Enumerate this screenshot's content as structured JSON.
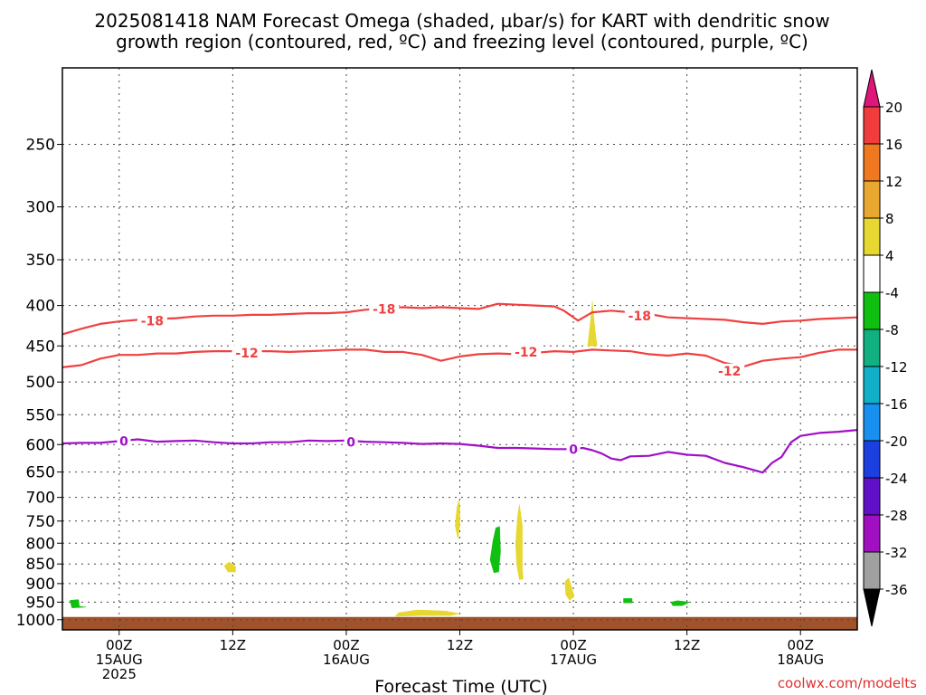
{
  "chart_data": {
    "type": "heatmap",
    "title_line1": "2025081418 NAM Forecast Omega (shaded, µbar/s) for KART with dendritic snow",
    "title_line2": "growth region (contoured, red, ºC) and freezing level (contoured, purple, ºC)",
    "xlabel": "Forecast Time (UTC)",
    "ylabel": "",
    "credit": "coolwx.com/modelts",
    "x_range_hours": [
      -6,
      78
    ],
    "x_ticks": [
      {
        "hour": 0,
        "line1": "00Z",
        "line2": "15AUG",
        "line3": "2025"
      },
      {
        "hour": 12,
        "line1": "12Z",
        "line2": "",
        "line3": ""
      },
      {
        "hour": 24,
        "line1": "00Z",
        "line2": "16AUG",
        "line3": ""
      },
      {
        "hour": 36,
        "line1": "12Z",
        "line2": "",
        "line3": ""
      },
      {
        "hour": 48,
        "line1": "00Z",
        "line2": "17AUG",
        "line3": ""
      },
      {
        "hour": 60,
        "line1": "12Z",
        "line2": "",
        "line3": ""
      },
      {
        "hour": 72,
        "line1": "00Z",
        "line2": "18AUG",
        "line3": ""
      }
    ],
    "y_range_hpa": [
      200,
      1030
    ],
    "y_ticks": [
      250,
      300,
      350,
      400,
      450,
      500,
      550,
      600,
      650,
      700,
      750,
      800,
      850,
      900,
      950,
      1000
    ],
    "grid": true,
    "colorbar": {
      "labels": [
        "20",
        "16",
        "12",
        "8",
        "4",
        "-4",
        "-8",
        "-12",
        "-16",
        "-20",
        "-24",
        "-28",
        "-32",
        "-36"
      ],
      "over_color": "#e0157a",
      "under_color": "#000000",
      "bins": [
        {
          "from": 16,
          "to": 20,
          "color": "#f03c3c"
        },
        {
          "from": 12,
          "to": 16,
          "color": "#f07820"
        },
        {
          "from": 8,
          "to": 12,
          "color": "#e8a830"
        },
        {
          "from": 4,
          "to": 8,
          "color": "#e6d830"
        },
        {
          "from": -4,
          "to": 4,
          "color": "#ffffff"
        },
        {
          "from": -8,
          "to": -4,
          "color": "#10c010"
        },
        {
          "from": -12,
          "to": -8,
          "color": "#10b080"
        },
        {
          "from": -16,
          "to": -12,
          "color": "#10b0c8"
        },
        {
          "from": -20,
          "to": -16,
          "color": "#1890f0"
        },
        {
          "from": -24,
          "to": -20,
          "color": "#1c40e0"
        },
        {
          "from": -28,
          "to": -24,
          "color": "#6010c8"
        },
        {
          "from": -32,
          "to": -28,
          "color": "#a010c0"
        },
        {
          "from": -36,
          "to": -32,
          "color": "#a0a0a0"
        }
      ]
    },
    "contours": [
      {
        "name": "-18",
        "color": "#f04040",
        "points": [
          [
            -6,
            435
          ],
          [
            -4,
            428
          ],
          [
            -2,
            422
          ],
          [
            0,
            419
          ],
          [
            2,
            417
          ],
          [
            4,
            416
          ],
          [
            6,
            415
          ],
          [
            8,
            413
          ],
          [
            10,
            412
          ],
          [
            12,
            412
          ],
          [
            14,
            411
          ],
          [
            16,
            411
          ],
          [
            18,
            410
          ],
          [
            20,
            409
          ],
          [
            22,
            409
          ],
          [
            24,
            408
          ],
          [
            26,
            405
          ],
          [
            28,
            403
          ],
          [
            30,
            402
          ],
          [
            32,
            403
          ],
          [
            34,
            402
          ],
          [
            36,
            403
          ],
          [
            38,
            404
          ],
          [
            40,
            398
          ],
          [
            42,
            399
          ],
          [
            44,
            400
          ],
          [
            46,
            401
          ],
          [
            47,
            406
          ],
          [
            48.5,
            418
          ],
          [
            50,
            408
          ],
          [
            52,
            406
          ],
          [
            54,
            408
          ],
          [
            56,
            410
          ],
          [
            58,
            414
          ],
          [
            60,
            415
          ],
          [
            62,
            416
          ],
          [
            64,
            417
          ],
          [
            66,
            420
          ],
          [
            68,
            422
          ],
          [
            70,
            419
          ],
          [
            72,
            418
          ],
          [
            74,
            416
          ],
          [
            76,
            415
          ],
          [
            78,
            414
          ]
        ],
        "labels": [
          [
            3.5,
            418
          ],
          [
            28,
            404
          ],
          [
            55,
            412
          ]
        ]
      },
      {
        "name": "-12",
        "color": "#f04040",
        "points": [
          [
            -6,
            479
          ],
          [
            -4,
            476
          ],
          [
            -2,
            467
          ],
          [
            0,
            462
          ],
          [
            2,
            462
          ],
          [
            4,
            460
          ],
          [
            6,
            460
          ],
          [
            8,
            458
          ],
          [
            10,
            457
          ],
          [
            12,
            457
          ],
          [
            14,
            457
          ],
          [
            16,
            457
          ],
          [
            18,
            458
          ],
          [
            20,
            457
          ],
          [
            22,
            456
          ],
          [
            24,
            455
          ],
          [
            26,
            455
          ],
          [
            28,
            458
          ],
          [
            30,
            458
          ],
          [
            32,
            462
          ],
          [
            34,
            470
          ],
          [
            36,
            464
          ],
          [
            38,
            461
          ],
          [
            40,
            460
          ],
          [
            42,
            461
          ],
          [
            44,
            459
          ],
          [
            46,
            457
          ],
          [
            48,
            458
          ],
          [
            50,
            455
          ],
          [
            52,
            456
          ],
          [
            54,
            457
          ],
          [
            56,
            461
          ],
          [
            58,
            463
          ],
          [
            60,
            460
          ],
          [
            62,
            463
          ],
          [
            64,
            473
          ],
          [
            66,
            478
          ],
          [
            68,
            470
          ],
          [
            70,
            467
          ],
          [
            72,
            465
          ],
          [
            74,
            459
          ],
          [
            76,
            455
          ],
          [
            78,
            455
          ]
        ],
        "labels": [
          [
            13.5,
            459
          ],
          [
            43,
            458
          ],
          [
            64.5,
            484
          ]
        ]
      },
      {
        "name": "0",
        "color": "#a010c8",
        "points": [
          [
            -6,
            598
          ],
          [
            -4,
            597
          ],
          [
            -2,
            597
          ],
          [
            0,
            594
          ],
          [
            2,
            591
          ],
          [
            4,
            595
          ],
          [
            6,
            594
          ],
          [
            8,
            593
          ],
          [
            10,
            596
          ],
          [
            12,
            598
          ],
          [
            14,
            598
          ],
          [
            16,
            596
          ],
          [
            18,
            596
          ],
          [
            20,
            593
          ],
          [
            22,
            594
          ],
          [
            24,
            593
          ],
          [
            26,
            595
          ],
          [
            28,
            596
          ],
          [
            30,
            597
          ],
          [
            32,
            599
          ],
          [
            34,
            598
          ],
          [
            36,
            599
          ],
          [
            38,
            602
          ],
          [
            40,
            606
          ],
          [
            42,
            606
          ],
          [
            44,
            607
          ],
          [
            46,
            608
          ],
          [
            48,
            608
          ],
          [
            49,
            606
          ],
          [
            50,
            610
          ],
          [
            51,
            616
          ],
          [
            52,
            625
          ],
          [
            53,
            628
          ],
          [
            54,
            621
          ],
          [
            56,
            620
          ],
          [
            58,
            613
          ],
          [
            60,
            618
          ],
          [
            62,
            620
          ],
          [
            64,
            633
          ],
          [
            66,
            641
          ],
          [
            68,
            651
          ],
          [
            69,
            633
          ],
          [
            70,
            622
          ],
          [
            71,
            596
          ],
          [
            72,
            585
          ],
          [
            74,
            580
          ],
          [
            76,
            578
          ],
          [
            78,
            575
          ]
        ],
        "labels": [
          [
            0.5,
            594
          ],
          [
            24.5,
            596
          ],
          [
            48,
            608
          ]
        ]
      }
    ],
    "shaded_regions": [
      {
        "value": 6,
        "color": "#e6d830",
        "points": [
          [
            49.5,
            450
          ],
          [
            49.8,
            420
          ],
          [
            50,
            395
          ],
          [
            50.2,
            420
          ],
          [
            50.5,
            450
          ]
        ]
      },
      {
        "value": 6,
        "color": "#e6d830",
        "points": [
          [
            11.1,
            855
          ],
          [
            11.6,
            845
          ],
          [
            12.3,
            856
          ],
          [
            12.3,
            870
          ],
          [
            11.5,
            870
          ]
        ]
      },
      {
        "value": 6,
        "color": "#e6d830",
        "points": [
          [
            35.5,
            760
          ],
          [
            35.7,
            720
          ],
          [
            35.9,
            705
          ],
          [
            36.0,
            720
          ],
          [
            36.0,
            760
          ],
          [
            35.8,
            790
          ]
        ]
      },
      {
        "value": 6,
        "color": "#e6d830",
        "points": [
          [
            41.9,
            800
          ],
          [
            42.1,
            740
          ],
          [
            42.3,
            715
          ],
          [
            42.6,
            760
          ],
          [
            42.6,
            860
          ],
          [
            42.7,
            888
          ],
          [
            42.3,
            890
          ],
          [
            42.0,
            850
          ]
        ]
      },
      {
        "value": 6,
        "color": "#e6d830",
        "points": [
          [
            47.1,
            895
          ],
          [
            47.5,
            885
          ],
          [
            47.7,
            900
          ],
          [
            48.1,
            935
          ],
          [
            47.6,
            945
          ],
          [
            47.2,
            930
          ]
        ]
      },
      {
        "value": 6,
        "color": "#e6d830",
        "points": [
          [
            29.5,
            980
          ],
          [
            31.5,
            972
          ],
          [
            34.5,
            975
          ],
          [
            36,
            983
          ],
          [
            35,
            988
          ],
          [
            32,
            988
          ],
          [
            29.2,
            990
          ]
        ]
      },
      {
        "value": -6,
        "color": "#10c010",
        "points": [
          [
            -5.2,
            945
          ],
          [
            -4.3,
            943
          ],
          [
            -4.2,
            962
          ],
          [
            -3.5,
            964
          ],
          [
            -5.0,
            966
          ]
        ]
      },
      {
        "value": -6,
        "color": "#10c010",
        "points": [
          [
            39.5,
            795
          ],
          [
            39.8,
            765
          ],
          [
            40.2,
            762
          ],
          [
            40.3,
            820
          ],
          [
            40.1,
            870
          ],
          [
            39.6,
            872
          ],
          [
            39.2,
            840
          ]
        ]
      },
      {
        "value": -6,
        "color": "#10c010",
        "points": [
          [
            53.3,
            940
          ],
          [
            54.2,
            940
          ],
          [
            54.2,
            952
          ],
          [
            53.3,
            952
          ]
        ]
      },
      {
        "value": -6,
        "color": "#10c010",
        "points": [
          [
            58.3,
            950
          ],
          [
            59,
            946
          ],
          [
            60.3,
            950
          ],
          [
            59.5,
            960
          ],
          [
            58.5,
            960
          ]
        ]
      }
    ],
    "terrain": {
      "color": "#a0522d",
      "top_hpa": 992
    }
  }
}
